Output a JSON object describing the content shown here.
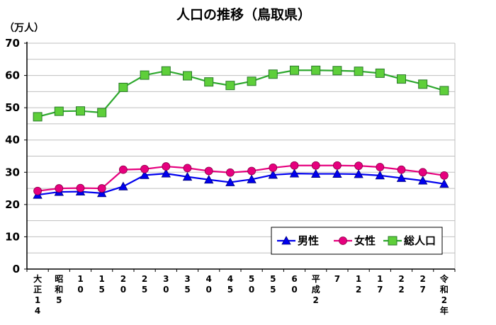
{
  "chart_data": {
    "type": "line",
    "title": "人口の推移（鳥取県）",
    "ylabel": "（万人）",
    "xlabel": "",
    "ylim": [
      0,
      70
    ],
    "yticks": [
      "0",
      "10",
      "20",
      "30",
      "40",
      "50",
      "60",
      "70"
    ],
    "grid": true,
    "legend_position": "bottom-right",
    "categories": [
      [
        "大",
        "正",
        "1",
        "4"
      ],
      [
        "昭",
        "和",
        "5"
      ],
      [
        "1",
        "0"
      ],
      [
        "1",
        "5"
      ],
      [
        "2",
        "0"
      ],
      [
        "2",
        "5"
      ],
      [
        "3",
        "0"
      ],
      [
        "3",
        "5"
      ],
      [
        "4",
        "0"
      ],
      [
        "4",
        "5"
      ],
      [
        "5",
        "0"
      ],
      [
        "5",
        "5"
      ],
      [
        "6",
        "0"
      ],
      [
        "平",
        "成",
        "2"
      ],
      [
        "7"
      ],
      [
        "1",
        "2"
      ],
      [
        "1",
        "7"
      ],
      [
        "2",
        "2"
      ],
      [
        "2",
        "7"
      ],
      [
        "令",
        "和",
        "2",
        "年"
      ]
    ],
    "series": [
      {
        "name": "男性",
        "color": "#0000ee",
        "marker": "triangle",
        "values": [
          23.0,
          23.9,
          24.0,
          23.5,
          25.6,
          29.1,
          29.6,
          28.6,
          27.7,
          26.9,
          27.8,
          29.2,
          29.6,
          29.5,
          29.5,
          29.4,
          29.0,
          28.2,
          27.4,
          26.4
        ]
      },
      {
        "name": "女性",
        "color": "#e6007e",
        "marker": "circle",
        "values": [
          24.2,
          25.0,
          25.1,
          25.0,
          30.8,
          31.0,
          31.8,
          31.3,
          30.4,
          29.9,
          30.4,
          31.4,
          32.1,
          32.1,
          32.1,
          32.0,
          31.6,
          30.8,
          30.0,
          29.0
        ]
      },
      {
        "name": "総人口",
        "color": "#2ea82e",
        "marker": "square",
        "values": [
          47.2,
          48.9,
          49.0,
          48.5,
          56.3,
          60.1,
          61.4,
          59.9,
          58.0,
          56.9,
          58.2,
          60.4,
          61.6,
          61.6,
          61.5,
          61.3,
          60.7,
          58.9,
          57.3,
          55.3
        ]
      }
    ]
  },
  "colors": {
    "grid": "#bfbfbf",
    "axis": "#000000",
    "male_marker_fill": "#0000ee",
    "female_marker_fill": "#e6007e",
    "total_marker_fill": "#5ecf3a",
    "total_marker_stroke": "#2a7a2a"
  }
}
